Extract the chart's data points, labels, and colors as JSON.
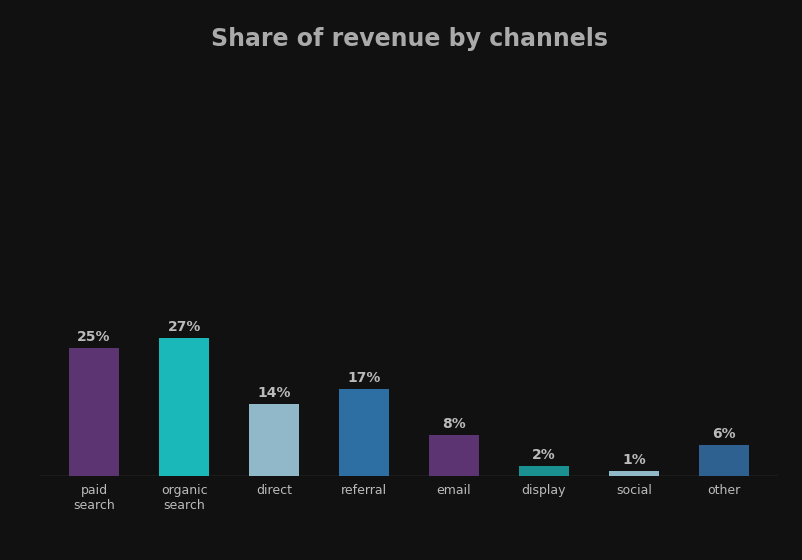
{
  "categories": [
    "paid\nsearch",
    "organic\nsearch",
    "direct",
    "referral",
    "email",
    "display",
    "social",
    "other"
  ],
  "values": [
    25,
    27,
    14,
    17,
    8,
    2,
    1,
    6
  ],
  "labels": [
    "25%",
    "27%",
    "14%",
    "17%",
    "8%",
    "2%",
    "1%",
    "6%"
  ],
  "bar_colors": [
    "#5c3472",
    "#1ab8b8",
    "#90b8c8",
    "#2e6fa3",
    "#5c3472",
    "#1a9090",
    "#90b8c8",
    "#2e6090"
  ],
  "title": "Share of revenue by channels",
  "background_color": "#111111",
  "text_color": "#bbbbbb",
  "title_color": "#aaaaaa",
  "ylim": [
    0,
    80
  ],
  "title_fontsize": 17,
  "label_fontsize": 10,
  "tick_fontsize": 9,
  "figsize": [
    8.02,
    5.6
  ],
  "dpi": 100
}
